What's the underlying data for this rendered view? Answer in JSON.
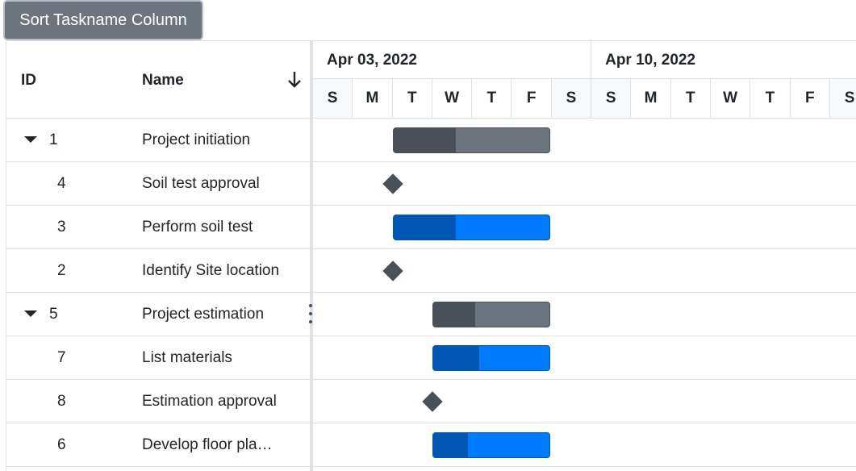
{
  "toolbar": {
    "sort_label": "Sort Taskname Column"
  },
  "grid": {
    "columns": {
      "id": "ID",
      "name": "Name"
    },
    "rows": [
      {
        "id": "1",
        "name": "Project initiation",
        "parent": true
      },
      {
        "id": "4",
        "name": "Soil test approval",
        "parent": false
      },
      {
        "id": "3",
        "name": "Perform soil test",
        "parent": false
      },
      {
        "id": "2",
        "name": "Identify Site location",
        "parent": false
      },
      {
        "id": "5",
        "name": "Project estimation",
        "parent": true
      },
      {
        "id": "7",
        "name": "List materials",
        "parent": false
      },
      {
        "id": "8",
        "name": "Estimation approval",
        "parent": false
      },
      {
        "id": "6",
        "name": "Develop floor pla…",
        "parent": false
      }
    ]
  },
  "timeline": {
    "weeks": [
      "Apr 03, 2022",
      "Apr 10, 2022"
    ],
    "days": [
      "S",
      "M",
      "T",
      "W",
      "T",
      "F",
      "S",
      "S",
      "M",
      "T",
      "W",
      "T",
      "F",
      "S"
    ]
  },
  "tasks": [
    {
      "type": "parent-bar",
      "start_day": 2,
      "duration_days": 4,
      "progress": 0.4
    },
    {
      "type": "milestone",
      "start_day": 2
    },
    {
      "type": "child-bar",
      "start_day": 2,
      "duration_days": 4,
      "progress": 0.4
    },
    {
      "type": "milestone",
      "start_day": 2
    },
    {
      "type": "parent-bar",
      "start_day": 3,
      "duration_days": 3,
      "progress": 0.36
    },
    {
      "type": "child-bar",
      "start_day": 3,
      "duration_days": 3,
      "progress": 0.4
    },
    {
      "type": "milestone",
      "start_day": 3
    },
    {
      "type": "child-bar",
      "start_day": 3,
      "duration_days": 3,
      "progress": 0.3
    }
  ],
  "colors": {
    "parent_bar": "#6c757d",
    "parent_progress": "#495057",
    "child_bar": "#007bff",
    "child_progress": "#0056b3",
    "milestone": "#495057"
  },
  "icons": {
    "sort": "arrow-down-icon",
    "expand": "caret-down-icon",
    "splitter": "vertical-ellipsis-icon"
  }
}
